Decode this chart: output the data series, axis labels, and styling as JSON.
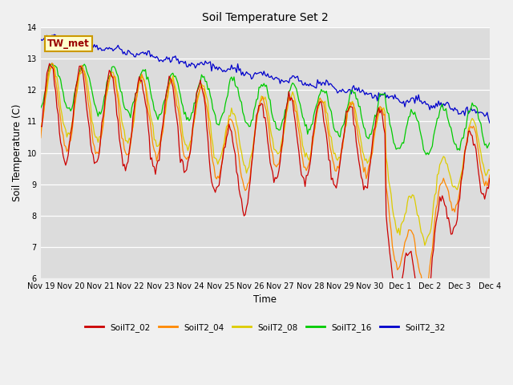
{
  "title": "Soil Temperature Set 2",
  "xlabel": "Time",
  "ylabel": "Soil Temperature (C)",
  "ylim": [
    6.0,
    14.0
  ],
  "yticks": [
    6.0,
    7.0,
    8.0,
    9.0,
    10.0,
    11.0,
    12.0,
    13.0,
    14.0
  ],
  "xtick_labels": [
    "Nov 19",
    "Nov 20",
    "Nov 21",
    "Nov 22",
    "Nov 23",
    "Nov 24",
    "Nov 25",
    "Nov 26",
    "Nov 27",
    "Nov 28",
    "Nov 29",
    "Nov 30",
    "Dec 1",
    "Dec 2",
    "Dec 3",
    "Dec 4"
  ],
  "colors": {
    "SoilT2_02": "#cc0000",
    "SoilT2_04": "#ff8800",
    "SoilT2_08": "#ddcc00",
    "SoilT2_16": "#00cc00",
    "SoilT2_32": "#0000cc"
  },
  "annotation_text": "TW_met",
  "annotation_bg": "#ffffcc",
  "annotation_border": "#cc8800",
  "fig_bg": "#f0f0f0",
  "plot_bg": "#dcdcdc",
  "legend_colors": [
    "#cc0000",
    "#ff8800",
    "#ddcc00",
    "#00cc00",
    "#0000cc"
  ],
  "legend_labels": [
    "SoilT2_02",
    "SoilT2_04",
    "SoilT2_08",
    "SoilT2_16",
    "SoilT2_32"
  ]
}
